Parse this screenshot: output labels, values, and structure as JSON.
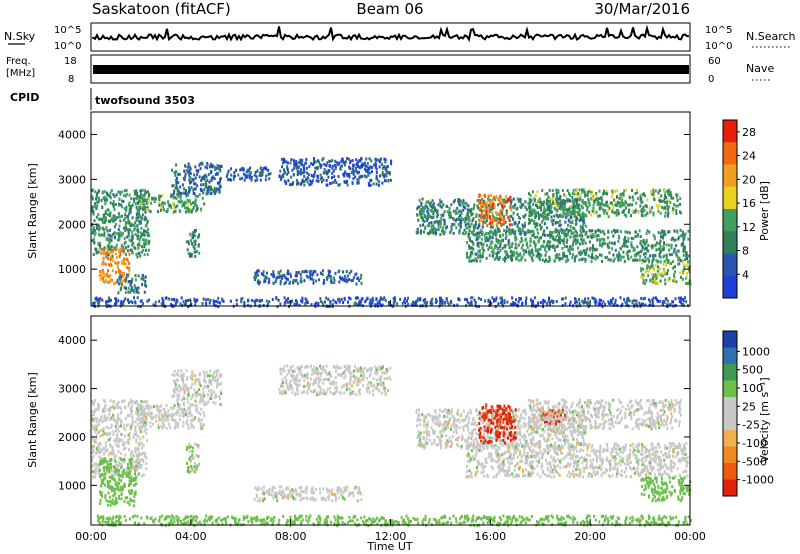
{
  "header": {
    "station": "Saskatoon (fitACF)",
    "beam": "Beam 06",
    "date": "30/Mar/2016"
  },
  "aux_panels": {
    "nsky_label": "N.Sky",
    "nsky_ticks": [
      "10^5",
      "10^0"
    ],
    "nsearch_label": "N.Search",
    "nsearch_ticks": [
      "10^5",
      "10^0"
    ],
    "freq_label_line1": "Freq.",
    "freq_label_line2": "[MHz]",
    "freq_ticks": [
      "18",
      "8"
    ],
    "nave_label": "Nave",
    "nave_ticks": [
      "60",
      "0"
    ],
    "cpid_label": "CPID",
    "cpid_value": "twofsound 3503"
  },
  "colors": {
    "power_scale": [
      "#1f3fd6",
      "#2a55b0",
      "#2f7f5a",
      "#3fa060",
      "#e8d21e",
      "#f0a020",
      "#f06a10",
      "#e81e0a"
    ],
    "velocity_scale": [
      "#e0200a",
      "#ef5a10",
      "#f08a20",
      "#f0b050",
      "#c8c8c8",
      "#c8c8c8",
      "#6cc04a",
      "#3f9a52",
      "#2f6fb0",
      "#1f3fa8"
    ]
  },
  "chart_data": [
    {
      "type": "heatmap",
      "name": "power-panel",
      "ylabel": "Slant Range [km]",
      "xlabel": "Time UT",
      "x_range_hours": [
        0,
        24
      ],
      "x_ticks": [
        "00:00",
        "04:00",
        "08:00",
        "12:00",
        "16:00",
        "20:00",
        "00:00"
      ],
      "y_range_km": [
        180,
        4500
      ],
      "y_ticks": [
        "1000",
        "2000",
        "3000",
        "4000"
      ],
      "colorbar_label": "Power [dB]",
      "colorbar_ticks": [
        "4",
        "8",
        "12",
        "16",
        "20",
        "24",
        "28"
      ],
      "colorbar_range": [
        0,
        30
      ],
      "bands": [
        {
          "x": [
            0.0,
            2.3
          ],
          "y": [
            1300,
            2800
          ],
          "level": 11
        },
        {
          "x": [
            0.3,
            1.5
          ],
          "y": [
            700,
            1500
          ],
          "level": 22
        },
        {
          "x": [
            1.0,
            2.2
          ],
          "y": [
            500,
            900
          ],
          "level": 9
        },
        {
          "x": [
            1.8,
            4.5
          ],
          "y": [
            2300,
            2700
          ],
          "level": 12
        },
        {
          "x": [
            3.2,
            5.2
          ],
          "y": [
            2700,
            3400
          ],
          "level": 7
        },
        {
          "x": [
            3.8,
            4.3
          ],
          "y": [
            1300,
            1900
          ],
          "level": 10
        },
        {
          "x": [
            5.4,
            7.2
          ],
          "y": [
            3000,
            3300
          ],
          "level": 5
        },
        {
          "x": [
            7.5,
            12.0
          ],
          "y": [
            2900,
            3500
          ],
          "level": 5
        },
        {
          "x": [
            6.5,
            10.8
          ],
          "y": [
            700,
            1000
          ],
          "level": 6
        },
        {
          "x": [
            13.0,
            19.8
          ],
          "y": [
            1800,
            2600
          ],
          "level": 10
        },
        {
          "x": [
            15.5,
            16.8
          ],
          "y": [
            2000,
            2700
          ],
          "level": 24
        },
        {
          "x": [
            15.0,
            23.9
          ],
          "y": [
            1200,
            1900
          ],
          "level": 11
        },
        {
          "x": [
            17.5,
            23.6
          ],
          "y": [
            2200,
            2800
          ],
          "level": 12
        },
        {
          "x": [
            22.0,
            24.0
          ],
          "y": [
            700,
            1200
          ],
          "level": 14
        },
        {
          "x": [
            0.0,
            24.0
          ],
          "y": [
            200,
            400
          ],
          "level": 5
        }
      ]
    },
    {
      "type": "heatmap",
      "name": "velocity-panel",
      "ylabel": "Slant Range [km]",
      "xlabel": "Time UT",
      "x_range_hours": [
        0,
        24
      ],
      "x_ticks": [
        "00:00",
        "04:00",
        "08:00",
        "12:00",
        "16:00",
        "20:00",
        "00:00"
      ],
      "y_range_km": [
        180,
        4500
      ],
      "y_ticks": [
        "1000",
        "2000",
        "3000",
        "4000"
      ],
      "colorbar_label": "Velocity [m s⁻¹]",
      "colorbar_ticks": [
        "1000",
        "500",
        "100",
        "25",
        "-25",
        "-100",
        "-500",
        "-1000"
      ],
      "bands": [
        {
          "x": [
            0.0,
            2.2
          ],
          "y": [
            1200,
            2800
          ],
          "level": 0
        },
        {
          "x": [
            0.3,
            1.8
          ],
          "y": [
            600,
            1600
          ],
          "level": 60
        },
        {
          "x": [
            1.8,
            4.5
          ],
          "y": [
            2200,
            2700
          ],
          "level": 0
        },
        {
          "x": [
            3.2,
            5.2
          ],
          "y": [
            2700,
            3400
          ],
          "level": 0
        },
        {
          "x": [
            3.8,
            4.3
          ],
          "y": [
            1300,
            1900
          ],
          "level": 40
        },
        {
          "x": [
            7.5,
            12.0
          ],
          "y": [
            2900,
            3500
          ],
          "level": 0
        },
        {
          "x": [
            6.5,
            10.8
          ],
          "y": [
            700,
            1000
          ],
          "level": 0
        },
        {
          "x": [
            13.0,
            19.8
          ],
          "y": [
            1800,
            2600
          ],
          "level": 0
        },
        {
          "x": [
            15.5,
            17.0
          ],
          "y": [
            1900,
            2700
          ],
          "level": -600
        },
        {
          "x": [
            18.0,
            19.0
          ],
          "y": [
            2300,
            2600
          ],
          "level": -600
        },
        {
          "x": [
            15.0,
            23.9
          ],
          "y": [
            1200,
            1900
          ],
          "level": 0
        },
        {
          "x": [
            17.5,
            23.6
          ],
          "y": [
            2200,
            2800
          ],
          "level": 0
        },
        {
          "x": [
            22.0,
            24.0
          ],
          "y": [
            700,
            1200
          ],
          "level": 60
        },
        {
          "x": [
            0.0,
            24.0
          ],
          "y": [
            200,
            400
          ],
          "level": 60
        }
      ]
    }
  ]
}
